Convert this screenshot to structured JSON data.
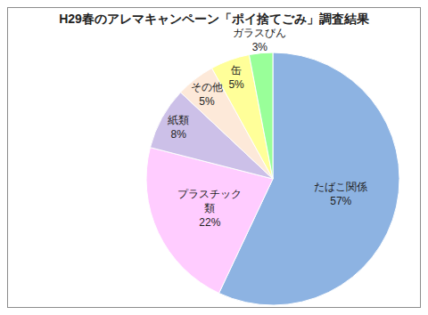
{
  "chart_data": {
    "type": "pie",
    "title": "H29春のアレマキャンペーン「ポイ捨てごみ」調査結果",
    "categories": [
      "たばこ関係",
      "プラスチック類",
      "紙類",
      "その他",
      "缶",
      "ガラスびん"
    ],
    "values": [
      57,
      22,
      8,
      5,
      5,
      3
    ],
    "value_labels": [
      "57%",
      "22%",
      "8%",
      "5%",
      "5%",
      "3%"
    ],
    "colors": [
      "#8DB3E2",
      "#FFCCFF",
      "#CCC0E8",
      "#FDE9D9",
      "#FFFF99",
      "#99FF99"
    ],
    "data_labels": true
  }
}
